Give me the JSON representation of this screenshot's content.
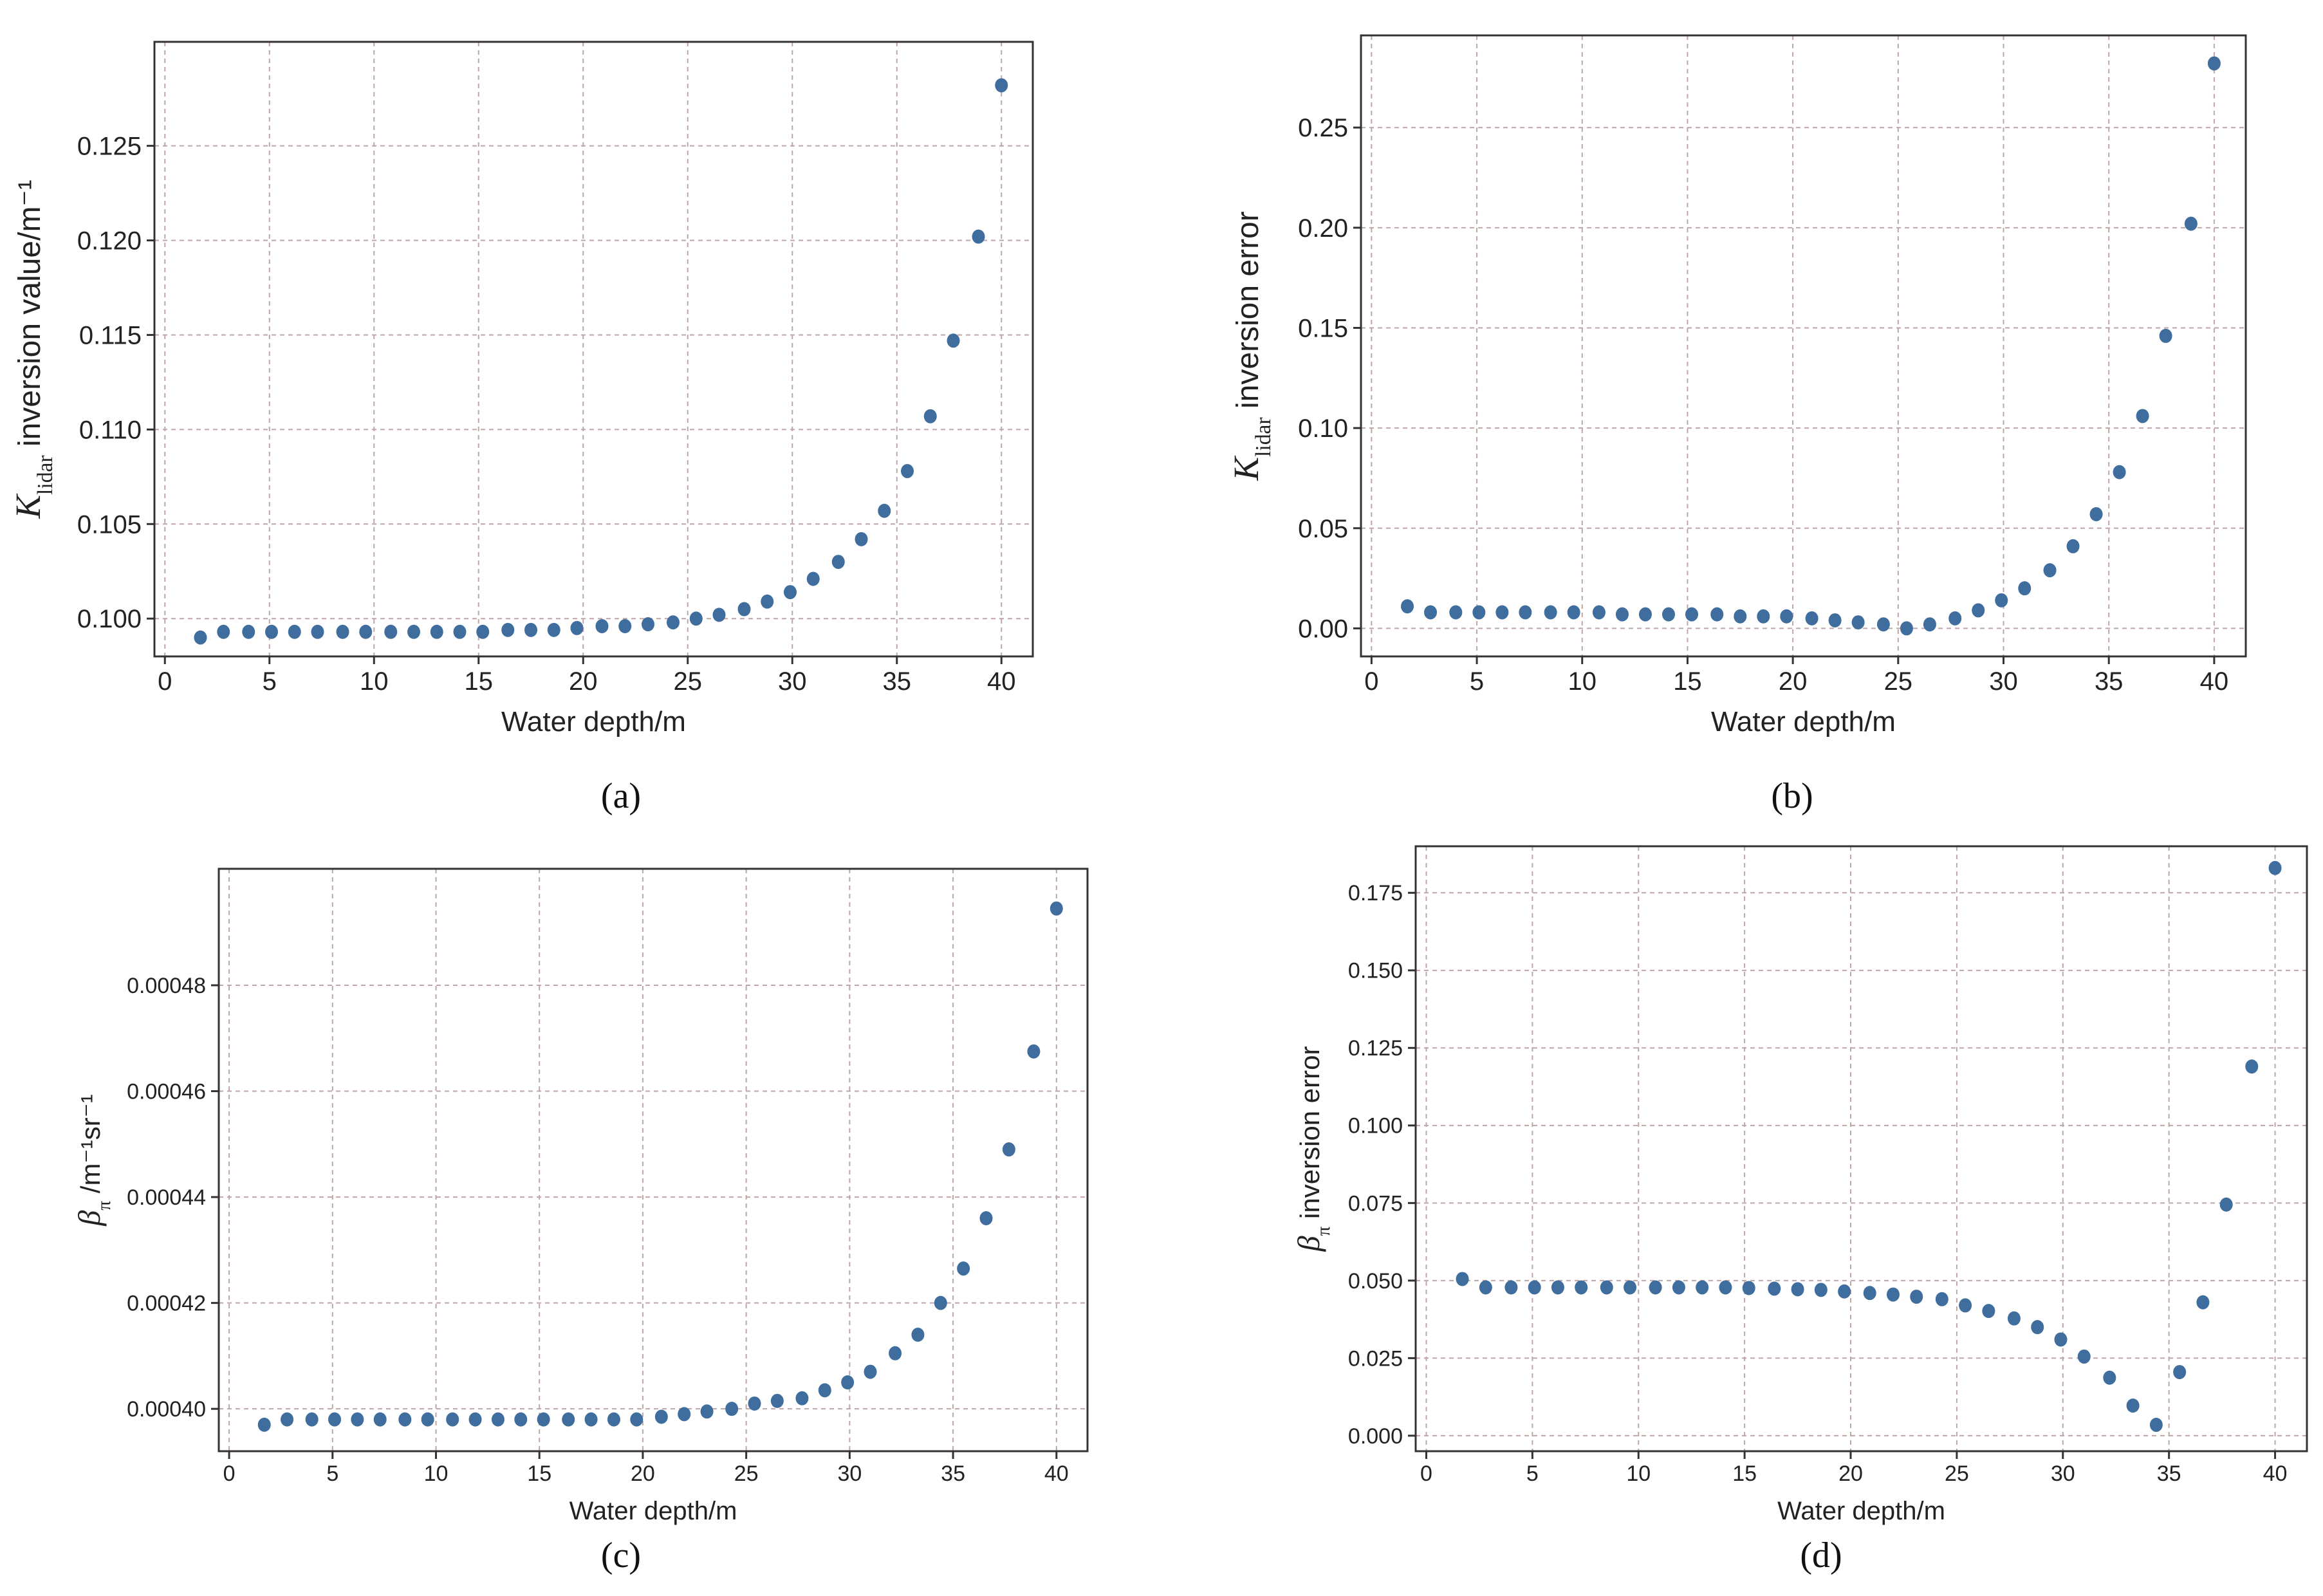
{
  "colors": {
    "marker": "#3f6e9e",
    "grid": "#bfa6a6",
    "axis": "#333333"
  },
  "chart_data": [
    {
      "type": "scatter",
      "caption": "(a)",
      "xlabel": "Water depth/m",
      "ylabel": {
        "symbol": "K",
        "sub": "lidar",
        "text": " inversion value/m⁻¹"
      },
      "xlim": [
        -0.5,
        41.5
      ],
      "ylim": [
        0.098,
        0.1305
      ],
      "xticks": [
        0,
        5,
        10,
        15,
        20,
        25,
        30,
        35,
        40
      ],
      "xtick_labels": [
        "0",
        "5",
        "10",
        "15",
        "20",
        "25",
        "30",
        "35",
        "40"
      ],
      "yticks": [
        0.1,
        0.105,
        0.11,
        0.115,
        0.12,
        0.125
      ],
      "ytick_labels": [
        "0.100",
        "0.105",
        "0.110",
        "0.115",
        "0.120",
        "0.125"
      ],
      "x": [
        1.7,
        2.8,
        4.0,
        5.1,
        6.2,
        7.3,
        8.5,
        9.6,
        10.8,
        11.9,
        13.0,
        14.1,
        15.2,
        16.4,
        17.5,
        18.6,
        19.7,
        20.9,
        22.0,
        23.1,
        24.3,
        25.4,
        26.5,
        27.7,
        28.8,
        29.9,
        31.0,
        32.2,
        33.3,
        34.4,
        35.5,
        36.6,
        37.7,
        38.9,
        40.0
      ],
      "values": [
        0.099,
        0.0993,
        0.0993,
        0.0993,
        0.0993,
        0.0993,
        0.0993,
        0.0993,
        0.0993,
        0.0993,
        0.0993,
        0.0993,
        0.0993,
        0.0994,
        0.0994,
        0.0994,
        0.0995,
        0.0996,
        0.0996,
        0.0997,
        0.0998,
        0.1,
        0.1002,
        0.1005,
        0.1009,
        0.1014,
        0.1021,
        0.103,
        0.1042,
        0.1057,
        0.1078,
        0.1107,
        0.1147,
        0.1202,
        0.1282
      ]
    },
    {
      "type": "scatter",
      "caption": "(b)",
      "xlabel": "Water depth/m",
      "ylabel": {
        "symbol": "K",
        "sub": "lidar",
        "text": " inversion error"
      },
      "xlim": [
        -0.5,
        41.5
      ],
      "ylim": [
        -0.014,
        0.296
      ],
      "xticks": [
        0,
        5,
        10,
        15,
        20,
        25,
        30,
        35,
        40
      ],
      "xtick_labels": [
        "0",
        "5",
        "10",
        "15",
        "20",
        "25",
        "30",
        "35",
        "40"
      ],
      "yticks": [
        0.0,
        0.05,
        0.1,
        0.15,
        0.2,
        0.25
      ],
      "ytick_labels": [
        "0.00",
        "0.05",
        "0.10",
        "0.15",
        "0.20",
        "0.25"
      ],
      "x": [
        1.7,
        2.8,
        4.0,
        5.1,
        6.2,
        7.3,
        8.5,
        9.6,
        10.8,
        11.9,
        13.0,
        14.1,
        15.2,
        16.4,
        17.5,
        18.6,
        19.7,
        20.9,
        22.0,
        23.1,
        24.3,
        25.4,
        26.5,
        27.7,
        28.8,
        29.9,
        31.0,
        32.2,
        33.3,
        34.4,
        35.5,
        36.6,
        37.7,
        38.9,
        40.0
      ],
      "values": [
        0.011,
        0.008,
        0.008,
        0.008,
        0.008,
        0.008,
        0.008,
        0.008,
        0.008,
        0.007,
        0.007,
        0.007,
        0.007,
        0.007,
        0.006,
        0.006,
        0.006,
        0.005,
        0.004,
        0.003,
        0.002,
        0.0,
        0.002,
        0.005,
        0.009,
        0.014,
        0.02,
        0.029,
        0.041,
        0.057,
        0.078,
        0.106,
        0.146,
        0.202,
        0.282
      ]
    },
    {
      "type": "scatter",
      "caption": "(c)",
      "xlabel": "Water depth/m",
      "ylabel": {
        "symbol": "β",
        "sub": "π",
        "text": " /m⁻¹sr⁻¹"
      },
      "xlim": [
        -0.5,
        41.5
      ],
      "ylim": [
        0.000392,
        0.000502
      ],
      "xticks": [
        0,
        5,
        10,
        15,
        20,
        25,
        30,
        35,
        40
      ],
      "xtick_labels": [
        "0",
        "5",
        "10",
        "15",
        "20",
        "25",
        "30",
        "35",
        "40"
      ],
      "yticks": [
        0.0004,
        0.00042,
        0.00044,
        0.00046,
        0.00048
      ],
      "ytick_labels": [
        "0.00040",
        "0.00042",
        "0.00044",
        "0.00046",
        "0.00048"
      ],
      "x": [
        1.7,
        2.8,
        4.0,
        5.1,
        6.2,
        7.3,
        8.5,
        9.6,
        10.8,
        11.9,
        13.0,
        14.1,
        15.2,
        16.4,
        17.5,
        18.6,
        19.7,
        20.9,
        22.0,
        23.1,
        24.3,
        25.4,
        26.5,
        27.7,
        28.8,
        29.9,
        31.0,
        32.2,
        33.3,
        34.4,
        35.5,
        36.6,
        37.7,
        38.9,
        40.0
      ],
      "values": [
        0.000397,
        0.000398,
        0.000398,
        0.000398,
        0.000398,
        0.000398,
        0.000398,
        0.000398,
        0.000398,
        0.000398,
        0.000398,
        0.000398,
        0.000398,
        0.000398,
        0.000398,
        0.000398,
        0.000398,
        0.0003985,
        0.000399,
        0.0003995,
        0.0004,
        0.000401,
        0.0004015,
        0.000402,
        0.0004035,
        0.000405,
        0.000407,
        0.0004105,
        0.000414,
        0.00042,
        0.0004265,
        0.000436,
        0.000449,
        0.0004675,
        0.0004945
      ]
    },
    {
      "type": "scatter",
      "caption": "(d)",
      "xlabel": "Water depth/m",
      "ylabel": {
        "symbol": "β",
        "sub": "π",
        "text": " inversion error"
      },
      "xlim": [
        -0.5,
        41.5
      ],
      "ylim": [
        -0.005,
        0.19
      ],
      "xticks": [
        0,
        5,
        10,
        15,
        20,
        25,
        30,
        35,
        40
      ],
      "xtick_labels": [
        "0",
        "5",
        "10",
        "15",
        "20",
        "25",
        "30",
        "35",
        "40"
      ],
      "yticks": [
        0.0,
        0.025,
        0.05,
        0.075,
        0.1,
        0.125,
        0.15,
        0.175
      ],
      "ytick_labels": [
        "0.000",
        "0.025",
        "0.050",
        "0.075",
        "0.100",
        "0.125",
        "0.150",
        "0.175"
      ],
      "x": [
        1.7,
        2.8,
        4.0,
        5.1,
        6.2,
        7.3,
        8.5,
        9.6,
        10.8,
        11.9,
        13.0,
        14.1,
        15.2,
        16.4,
        17.5,
        18.6,
        19.7,
        20.9,
        22.0,
        23.1,
        24.3,
        25.4,
        26.5,
        27.7,
        28.8,
        29.9,
        31.0,
        32.2,
        33.3,
        34.4,
        35.5,
        36.6,
        37.7,
        38.9,
        40.0
      ],
      "values": [
        0.0505,
        0.0478,
        0.0478,
        0.0478,
        0.0478,
        0.0478,
        0.0478,
        0.0478,
        0.0478,
        0.0478,
        0.0478,
        0.0478,
        0.0476,
        0.0474,
        0.0472,
        0.047,
        0.0465,
        0.046,
        0.0455,
        0.0448,
        0.044,
        0.042,
        0.0402,
        0.0378,
        0.035,
        0.031,
        0.0255,
        0.0187,
        0.0097,
        0.0035,
        0.0205,
        0.043,
        0.0745,
        0.119,
        0.183
      ]
    }
  ]
}
